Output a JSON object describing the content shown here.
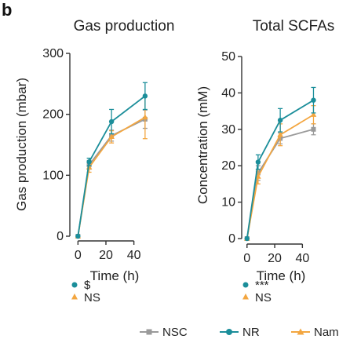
{
  "panel_label": "b",
  "colors": {
    "NSC": "#9a9a9a",
    "NR": "#1b8e9a",
    "Nam": "#f3a640"
  },
  "legend": [
    {
      "key": "NSC",
      "label": "NSC"
    },
    {
      "key": "NR",
      "label": "NR"
    },
    {
      "key": "Nam",
      "label": "Nam"
    }
  ],
  "chart_data": [
    {
      "type": "line",
      "title": "Gas production",
      "xlabel": "Time (h)",
      "ylabel": "Gas production (mbar)",
      "x": [
        0,
        8,
        24,
        48
      ],
      "xticks": [
        0,
        20,
        40
      ],
      "xlim": [
        -3,
        52
      ],
      "yticks": [
        0,
        100,
        200,
        300
      ],
      "ylim": [
        0,
        300
      ],
      "series": [
        {
          "name": "NSC",
          "key": "NSC",
          "values": [
            0,
            117,
            165,
            192
          ],
          "errors": [
            0,
            7,
            9,
            15
          ]
        },
        {
          "name": "NR",
          "key": "NR",
          "values": [
            0,
            122,
            188,
            230
          ],
          "errors": [
            0,
            6,
            20,
            22
          ]
        },
        {
          "name": "Nam",
          "key": "Nam",
          "values": [
            0,
            113,
            163,
            195
          ],
          "errors": [
            0,
            8,
            10,
            35
          ]
        }
      ],
      "significance": [
        {
          "key": "NR",
          "text": "$"
        },
        {
          "key": "Nam",
          "text": "NS"
        }
      ]
    },
    {
      "type": "line",
      "title": "Total SCFAs",
      "xlabel": "Time (h)",
      "ylabel": "Concentration (mM)",
      "x": [
        0,
        8,
        24,
        48
      ],
      "xticks": [
        0,
        20,
        40
      ],
      "xlim": [
        -1,
        50
      ],
      "yticks": [
        0,
        10,
        20,
        30,
        40,
        50
      ],
      "ylim": [
        0,
        50
      ],
      "series": [
        {
          "name": "NSC",
          "key": "NSC",
          "values": [
            0,
            18,
            27.5,
            30
          ],
          "errors": [
            0,
            2,
            1.5,
            1.5
          ]
        },
        {
          "name": "NR",
          "key": "NR",
          "values": [
            0,
            21,
            32.5,
            38
          ],
          "errors": [
            0,
            2,
            3.2,
            3.5
          ]
        },
        {
          "name": "Nam",
          "key": "Nam",
          "values": [
            0,
            17,
            28.5,
            34
          ],
          "errors": [
            0,
            2,
            3,
            2.5
          ]
        }
      ],
      "significance": [
        {
          "key": "NR",
          "text": "***"
        },
        {
          "key": "Nam",
          "text": "NS"
        }
      ]
    }
  ]
}
